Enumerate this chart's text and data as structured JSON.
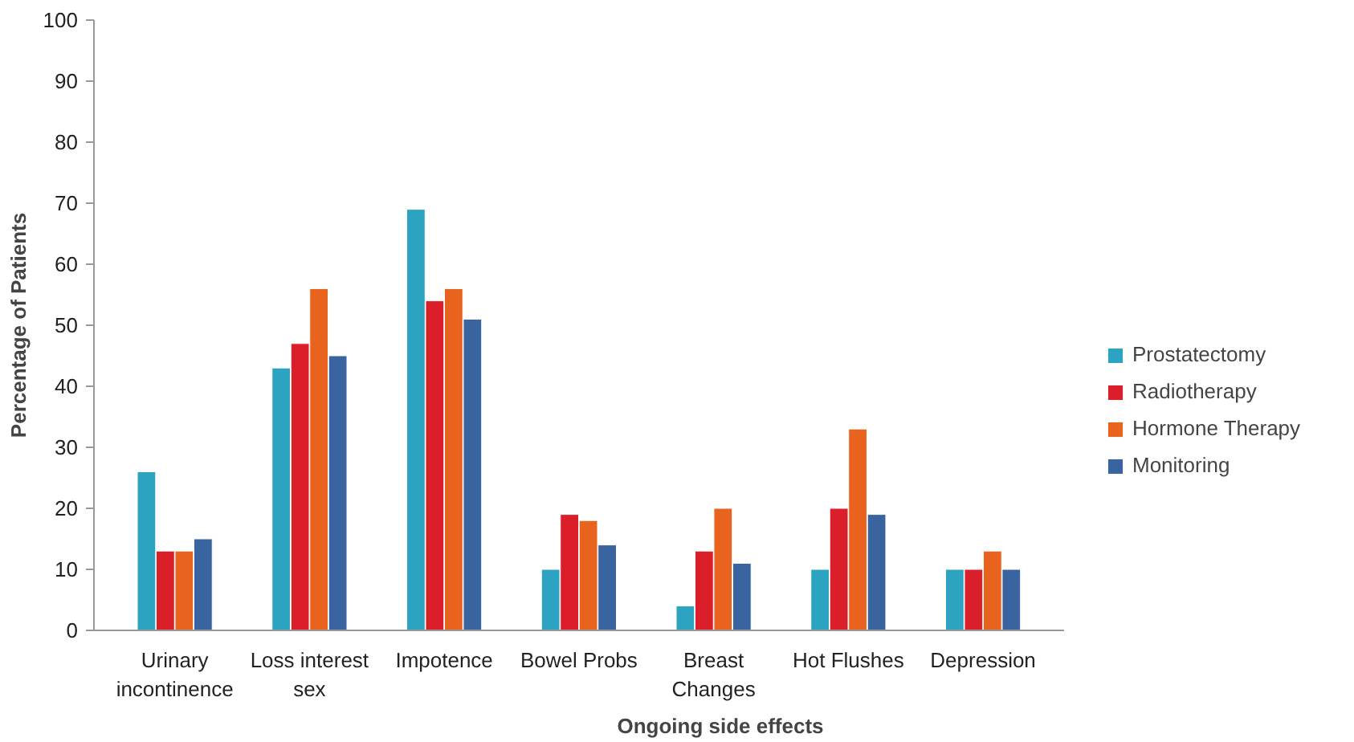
{
  "chart_data": {
    "type": "bar",
    "xlabel": "Ongoing side effects",
    "ylabel": "Percentage of Patients",
    "categories": [
      "Urinary\nincontinence",
      "Loss interest\nsex",
      "Impotence",
      "Bowel Probs",
      "Breast\nChanges",
      "Hot Flushes",
      "Depression"
    ],
    "series": [
      {
        "name": "Prostatectomy",
        "color": "#2ca3c0",
        "values": [
          26,
          43,
          69,
          10,
          4,
          10,
          10
        ]
      },
      {
        "name": "Radiotherapy",
        "color": "#db1f2a",
        "values": [
          13,
          47,
          54,
          19,
          13,
          20,
          10
        ]
      },
      {
        "name": "Hormone Therapy",
        "color": "#e8641e",
        "values": [
          13,
          56,
          56,
          18,
          20,
          33,
          13
        ]
      },
      {
        "name": "Monitoring",
        "color": "#3a64a0",
        "values": [
          15,
          45,
          51,
          14,
          11,
          19,
          10
        ]
      }
    ],
    "ylim": [
      0,
      100
    ],
    "yticks": [
      0,
      10,
      20,
      30,
      40,
      50,
      60,
      70,
      80,
      90,
      100
    ],
    "grid": false,
    "legend": "right"
  }
}
